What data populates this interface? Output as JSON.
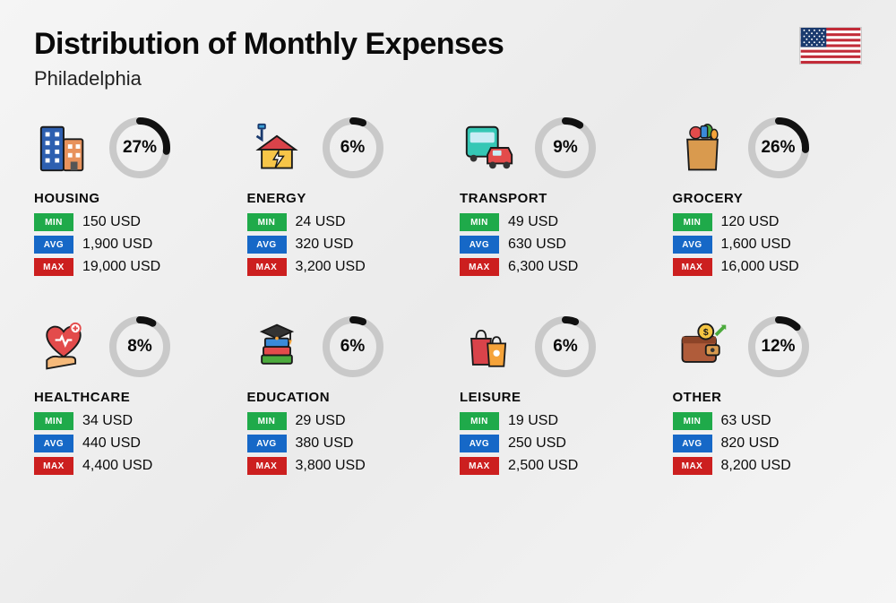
{
  "header": {
    "title": "Distribution of Monthly Expenses",
    "subtitle": "Philadelphia"
  },
  "ring": {
    "trackColor": "#c9c9c9",
    "progressColor": "#111111",
    "radius": 30,
    "strokeWidth": 8
  },
  "tagColors": {
    "min": "#1faa4a",
    "avg": "#1668c7",
    "max": "#cc1f1f"
  },
  "tagLabels": {
    "min": "MIN",
    "avg": "AVG",
    "max": "MAX"
  },
  "currencySuffix": " USD",
  "categories": [
    {
      "key": "housing",
      "name": "HOUSING",
      "percent": 27,
      "min": "150",
      "avg": "1,900",
      "max": "19,000",
      "icon": "buildings"
    },
    {
      "key": "energy",
      "name": "ENERGY",
      "percent": 6,
      "min": "24",
      "avg": "320",
      "max": "3,200",
      "icon": "energy-house"
    },
    {
      "key": "transport",
      "name": "TRANSPORT",
      "percent": 9,
      "min": "49",
      "avg": "630",
      "max": "6,300",
      "icon": "bus-car"
    },
    {
      "key": "grocery",
      "name": "GROCERY",
      "percent": 26,
      "min": "120",
      "avg": "1,600",
      "max": "16,000",
      "icon": "grocery-bag"
    },
    {
      "key": "healthcare",
      "name": "HEALTHCARE",
      "percent": 8,
      "min": "34",
      "avg": "440",
      "max": "4,400",
      "icon": "heart-hand"
    },
    {
      "key": "education",
      "name": "EDUCATION",
      "percent": 6,
      "min": "29",
      "avg": "380",
      "max": "3,800",
      "icon": "grad-books"
    },
    {
      "key": "leisure",
      "name": "LEISURE",
      "percent": 6,
      "min": "19",
      "avg": "250",
      "max": "2,500",
      "icon": "shopping-bags"
    },
    {
      "key": "other",
      "name": "OTHER",
      "percent": 12,
      "min": "63",
      "avg": "820",
      "max": "8,200",
      "icon": "wallet-arrow"
    }
  ]
}
